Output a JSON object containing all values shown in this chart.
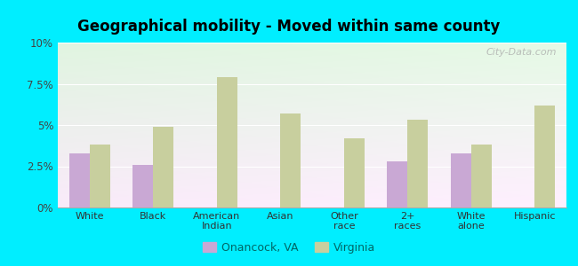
{
  "title": "Geographical mobility - Moved within same county",
  "categories": [
    "White",
    "Black",
    "American\nIndian",
    "Asian",
    "Other\nrace",
    "2+\nraces",
    "White\nalone",
    "Hispanic"
  ],
  "onancock_values": [
    3.3,
    2.6,
    0.0,
    0.0,
    0.0,
    2.8,
    3.3,
    0.0
  ],
  "virginia_values": [
    3.8,
    4.9,
    7.9,
    5.7,
    4.2,
    5.3,
    3.8,
    6.2
  ],
  "onancock_color": "#c9a8d4",
  "virginia_color": "#c8cf9e",
  "ylim": [
    0,
    10
  ],
  "yticks": [
    0,
    2.5,
    5.0,
    7.5,
    10.0
  ],
  "ytick_labels": [
    "0%",
    "2.5%",
    "5%",
    "7.5%",
    "10%"
  ],
  "outer_background": "#00eeff",
  "legend_label1": "Onancock, VA",
  "legend_label2": "Virginia",
  "bar_width": 0.32,
  "watermark": "City-Data.com"
}
